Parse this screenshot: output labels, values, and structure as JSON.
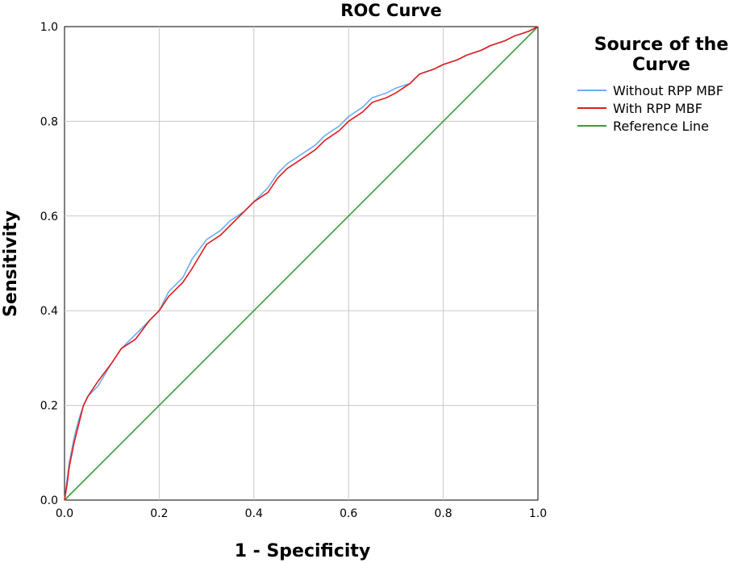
{
  "chart_data": {
    "type": "line",
    "title": "ROC Curve",
    "xlabel": "1 - Specificity",
    "ylabel": "Sensitivity",
    "xlim": [
      0,
      1
    ],
    "ylim": [
      0,
      1
    ],
    "x_ticks": [
      "0.0",
      "0.2",
      "0.4",
      "0.6",
      "0.8",
      "1.0"
    ],
    "y_ticks": [
      "0.0",
      "0.2",
      "0.4",
      "0.6",
      "0.8",
      "1.0"
    ],
    "grid": true,
    "legend": {
      "title_lines": [
        "Source of the",
        "Curve"
      ],
      "position": "top-right"
    },
    "series": [
      {
        "name": "Without RPP MBF",
        "color": "#6aaef0",
        "x": [
          0,
          0.005,
          0.01,
          0.02,
          0.03,
          0.04,
          0.05,
          0.07,
          0.1,
          0.12,
          0.15,
          0.18,
          0.2,
          0.22,
          0.25,
          0.27,
          0.3,
          0.33,
          0.35,
          0.38,
          0.4,
          0.43,
          0.45,
          0.47,
          0.5,
          0.53,
          0.55,
          0.58,
          0.6,
          0.63,
          0.65,
          0.68,
          0.7,
          0.73,
          0.75,
          0.78,
          0.8,
          0.83,
          0.85,
          0.88,
          0.9,
          0.93,
          0.95,
          0.98,
          1.0
        ],
        "y": [
          0,
          0.04,
          0.08,
          0.13,
          0.17,
          0.2,
          0.22,
          0.24,
          0.29,
          0.32,
          0.35,
          0.38,
          0.4,
          0.44,
          0.47,
          0.51,
          0.55,
          0.57,
          0.59,
          0.61,
          0.63,
          0.66,
          0.69,
          0.71,
          0.73,
          0.75,
          0.77,
          0.79,
          0.81,
          0.83,
          0.85,
          0.86,
          0.87,
          0.88,
          0.9,
          0.91,
          0.92,
          0.93,
          0.94,
          0.95,
          0.96,
          0.97,
          0.98,
          0.99,
          1.0
        ]
      },
      {
        "name": "With RPP MBF",
        "color": "#e31a1c",
        "x": [
          0,
          0.005,
          0.01,
          0.02,
          0.03,
          0.04,
          0.05,
          0.07,
          0.1,
          0.12,
          0.15,
          0.18,
          0.2,
          0.22,
          0.25,
          0.27,
          0.3,
          0.33,
          0.35,
          0.38,
          0.4,
          0.43,
          0.45,
          0.47,
          0.5,
          0.53,
          0.55,
          0.58,
          0.6,
          0.63,
          0.65,
          0.68,
          0.7,
          0.73,
          0.75,
          0.78,
          0.8,
          0.83,
          0.85,
          0.88,
          0.9,
          0.93,
          0.95,
          0.98,
          1.0
        ],
        "y": [
          0,
          0.03,
          0.07,
          0.12,
          0.16,
          0.2,
          0.22,
          0.25,
          0.29,
          0.32,
          0.34,
          0.38,
          0.4,
          0.43,
          0.46,
          0.49,
          0.54,
          0.56,
          0.58,
          0.61,
          0.63,
          0.65,
          0.68,
          0.7,
          0.72,
          0.74,
          0.76,
          0.78,
          0.8,
          0.82,
          0.84,
          0.85,
          0.86,
          0.88,
          0.9,
          0.91,
          0.92,
          0.93,
          0.94,
          0.95,
          0.96,
          0.97,
          0.98,
          0.99,
          1.0
        ]
      },
      {
        "name": "Reference Line",
        "color": "#3a9c3a",
        "x": [
          0,
          1
        ],
        "y": [
          0,
          1
        ]
      }
    ]
  }
}
